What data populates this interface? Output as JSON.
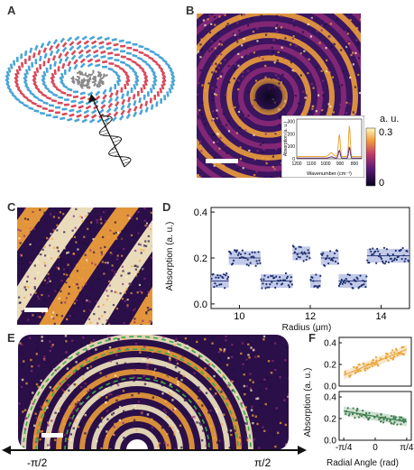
{
  "panels": {
    "A": {
      "letter": "A"
    },
    "B": {
      "letter": "B"
    },
    "C": {
      "letter": "C"
    },
    "D": {
      "letter": "D"
    },
    "E": {
      "letter": "E"
    },
    "F": {
      "letter": "F"
    }
  },
  "colorbar": {
    "unit": "a. u.",
    "max": "0.3",
    "min": "0"
  },
  "colors": {
    "ring_red": "#d94a5a",
    "ring_blue": "#4aa5d6",
    "ring_gray": "#8a8a8a",
    "map_dark": "#1d1040",
    "map_mid": "#8e2a78",
    "map_bright": "#f6a43a",
    "map_light": "#fff3c8",
    "line_orange": "#e9a53a",
    "line_purple": "#5c2a6e",
    "series_blue": "#1f2f6e",
    "band_blue": "#a8b4e0",
    "series_orange": "#e9a53a",
    "series_green": "#3f7f4e",
    "dashed_green": "#3aa84a"
  },
  "panel_B": {
    "inset_ylabel": "Absorption (a. u.)",
    "inset_xlabel": "Wavenumber (cm⁻¹)",
    "inset_yticks": [
      "0",
      "100",
      "200",
      "300"
    ],
    "inset_xticks": [
      "1200",
      "1100",
      "1000",
      "900",
      "800"
    ]
  },
  "panel_E": {
    "left_label": "-π/2",
    "right_label": "π/2"
  },
  "chart_data": [
    {
      "id": "D",
      "type": "scatter",
      "xlabel": "Radius (μm)",
      "ylabel": "Absorption (a. u.)",
      "xlim": [
        9.2,
        14.8
      ],
      "ylim": [
        -0.02,
        0.42
      ],
      "xticks": [
        10,
        12,
        14
      ],
      "yticks": [
        0.0,
        0.2,
        0.4
      ],
      "xtick_labels": [
        "10",
        "12",
        "14"
      ],
      "ytick_labels": [
        "0.0",
        "0.2",
        "0.4"
      ],
      "steps": [
        {
          "x0": 9.2,
          "x1": 9.7,
          "y": 0.1
        },
        {
          "x0": 9.7,
          "x1": 10.6,
          "y": 0.2
        },
        {
          "x0": 10.6,
          "x1": 11.5,
          "y": 0.1
        },
        {
          "x0": 11.5,
          "x1": 12.0,
          "y": 0.22
        },
        {
          "x0": 12.0,
          "x1": 12.3,
          "y": 0.1
        },
        {
          "x0": 12.3,
          "x1": 12.8,
          "y": 0.2
        },
        {
          "x0": 12.8,
          "x1": 13.6,
          "y": 0.1
        },
        {
          "x0": 13.6,
          "x1": 14.8,
          "y": 0.21
        }
      ],
      "point_samples_per_unit": 40
    },
    {
      "id": "F-top",
      "type": "scatter",
      "ylabel": "Absorption (a. u.)",
      "ylim": [
        0.0,
        0.45
      ],
      "yticks": [
        0.0,
        0.2,
        0.4
      ],
      "ytick_labels": [
        "0.0",
        "0.2",
        "0.4"
      ],
      "xlim": [
        -0.9,
        0.9
      ],
      "fit": {
        "x0": -0.785,
        "y0": 0.1,
        "x1": 0.785,
        "y1": 0.34
      }
    },
    {
      "id": "F-bottom",
      "type": "scatter",
      "xlabel": "Radial Angle (rad)",
      "ylim": [
        0.0,
        0.45
      ],
      "yticks": [
        0.0,
        0.2,
        0.4
      ],
      "ytick_labels": [
        "0.0",
        "0.2",
        "0.4"
      ],
      "xlim": [
        -0.9,
        0.9
      ],
      "xticks": [
        -0.785,
        0,
        0.785
      ],
      "xtick_labels": [
        "-π/4",
        "0",
        "π/4"
      ],
      "fit": {
        "x0": -0.785,
        "y0": 0.27,
        "x1": 0.785,
        "y1": 0.17
      }
    }
  ]
}
